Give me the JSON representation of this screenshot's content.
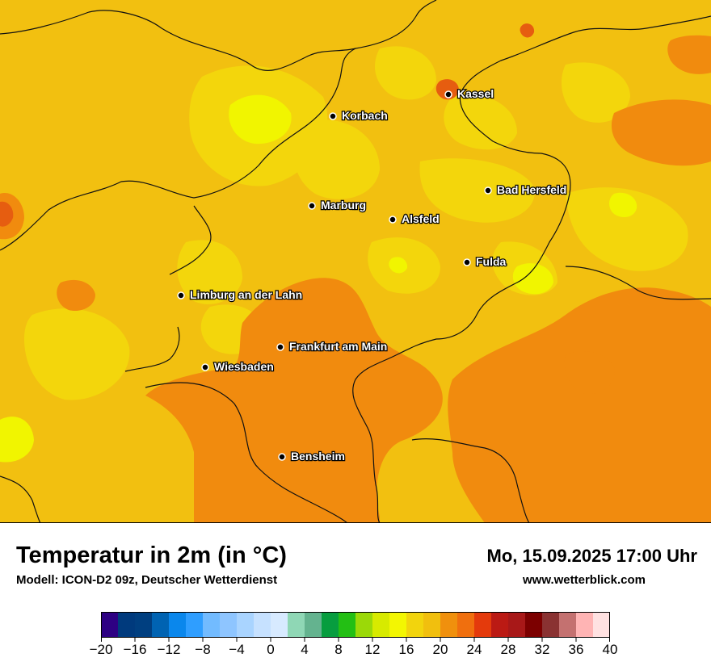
{
  "map": {
    "cities": [
      {
        "name": "Kassel"
      },
      {
        "name": "Korbach"
      },
      {
        "name": "Bad Hersfeld"
      },
      {
        "name": "Marburg"
      },
      {
        "name": "Alsfeld"
      },
      {
        "name": "Fulda"
      },
      {
        "name": "Limburg an der Lahn"
      },
      {
        "name": "Frankfurt am Main"
      },
      {
        "name": "Wiesbaden"
      },
      {
        "name": "Bensheim"
      }
    ],
    "colors": {
      "base": "#f2c010",
      "cool": "#f3d60c",
      "coolest": "#f1f500",
      "warm": "#f18b0e",
      "hot": "#e65d10",
      "border": "#111111"
    }
  },
  "footer": {
    "title": "Temperatur in 2m (in °C)",
    "model": "Modell: ICON-D2 09z, Deutscher Wetterdienst",
    "datetime": "Mo, 15.09.2025 17:00 Uhr",
    "website": "www.wetterblick.com"
  },
  "legend": {
    "colors": [
      "#2e0183",
      "#003a7d",
      "#003f80",
      "#0063b2",
      "#0a87ec",
      "#2f9eff",
      "#72bbff",
      "#8ec5ff",
      "#a9d4ff",
      "#c6e1ff",
      "#d7eaff",
      "#8fd7b5",
      "#64b38f",
      "#079d3f",
      "#23bf14",
      "#9bd908",
      "#d7ea00",
      "#f3f602",
      "#f2d40d",
      "#f1bf0e",
      "#f0900d",
      "#f06f0e",
      "#e43a0c",
      "#bb1a14",
      "#a81818",
      "#7c0000",
      "#8a3232",
      "#c47170",
      "#ffb4b4",
      "#ffe1e1"
    ],
    "tick_labels": [
      "−20",
      "−16",
      "−12",
      "−8",
      "−4",
      "0",
      "4",
      "8",
      "12",
      "16",
      "20",
      "24",
      "28",
      "32",
      "36",
      "40"
    ]
  }
}
